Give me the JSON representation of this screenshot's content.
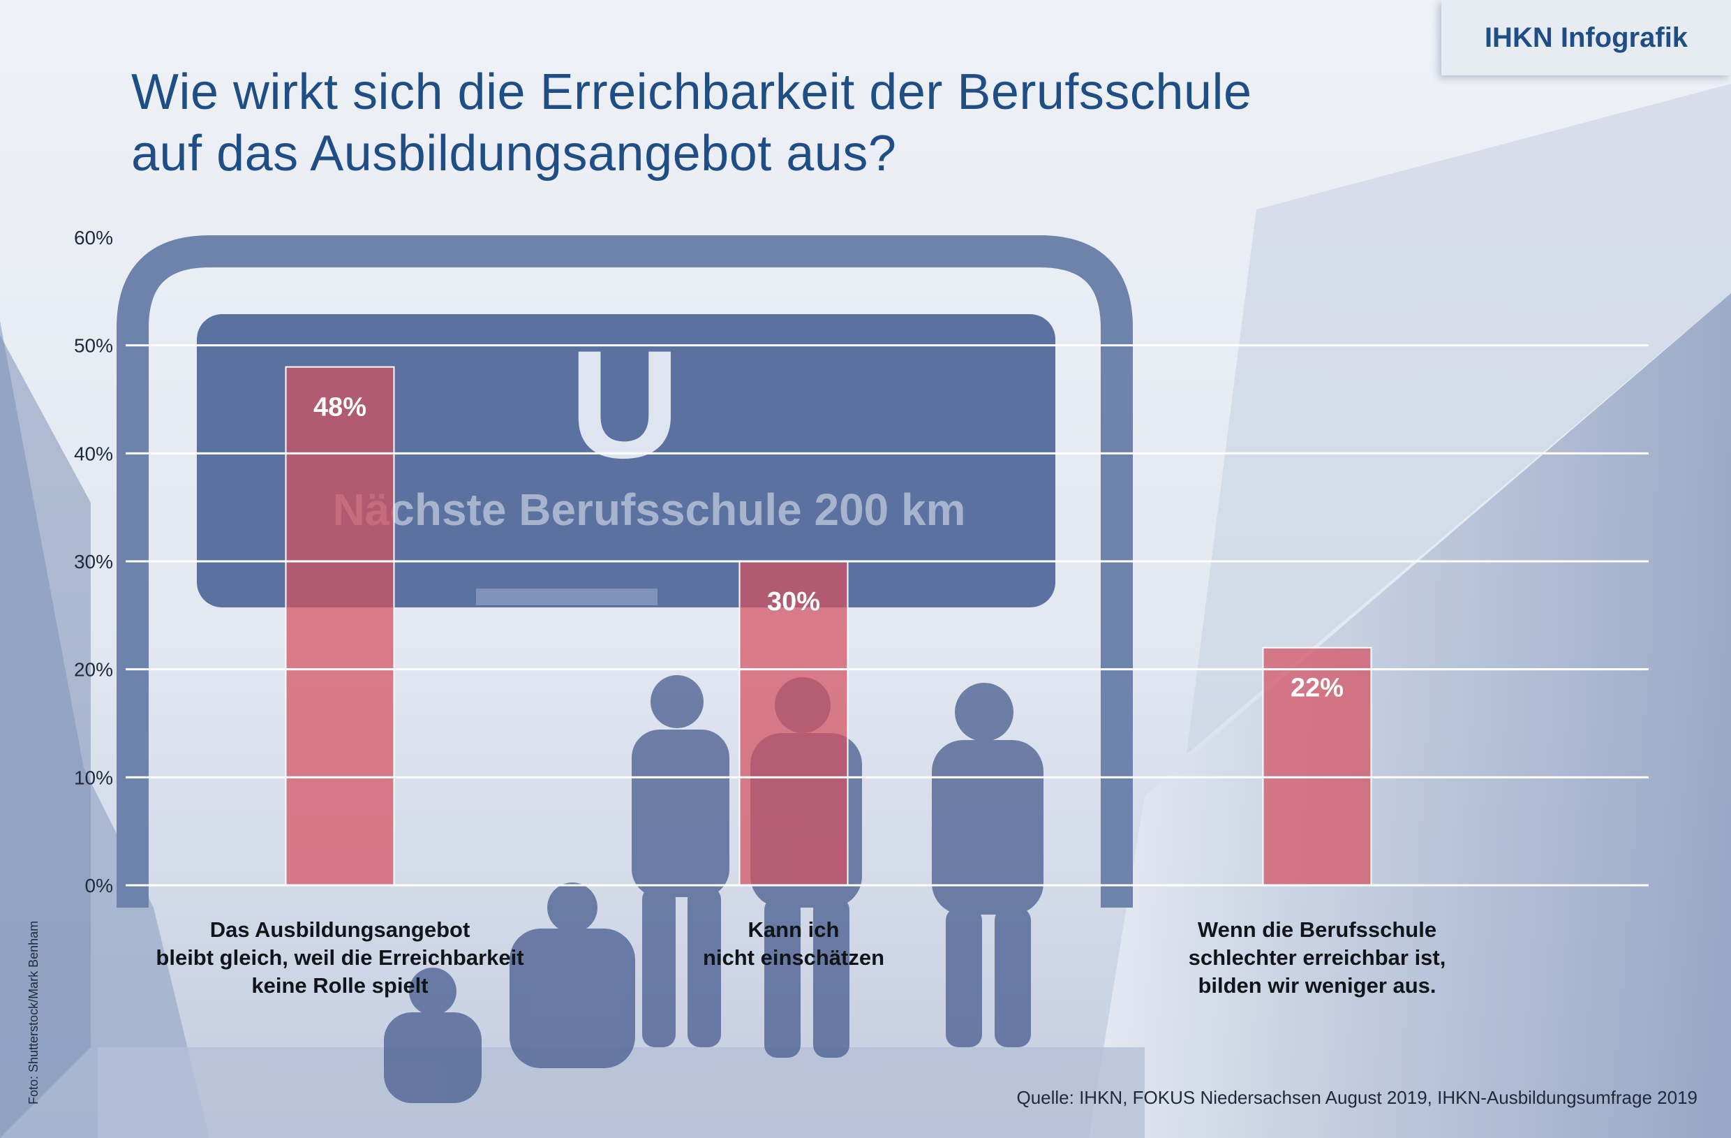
{
  "header": {
    "badge": "IHKN Infografik",
    "title_line1": "Wie wirkt sich die Erreichbarkeit der Berufsschule",
    "title_line2": "auf das Ausbildungsangebot aus?"
  },
  "photo": {
    "sign_letter": "U",
    "sign_text": "Nächste Berufsschule 200 km"
  },
  "chart_data": {
    "type": "bar",
    "categories": [
      [
        "Das Ausbildungsangebot",
        "bleibt gleich, weil die Erreichbarkeit",
        "keine Rolle spielt"
      ],
      [
        "Kann ich",
        "nicht einschätzen"
      ],
      [
        "Wenn die Berufsschule",
        "schlechter erreichbar ist,",
        "bilden wir weniger aus."
      ]
    ],
    "values": [
      48,
      30,
      22
    ],
    "data_labels": [
      "48%",
      "30%",
      "22%"
    ],
    "yticks": [
      "0%",
      "10%",
      "20%",
      "30%",
      "40%",
      "50%",
      "60%"
    ],
    "ylim": [
      0,
      60
    ],
    "grid": true,
    "bar_color": "#d4505f"
  },
  "footer": {
    "credit": "Foto: Shutterstock/Mark Benham",
    "source": "Quelle: IHKN, FOKUS Niedersachsen August 2019, IHKN-Ausbildungsumfrage 2019"
  }
}
